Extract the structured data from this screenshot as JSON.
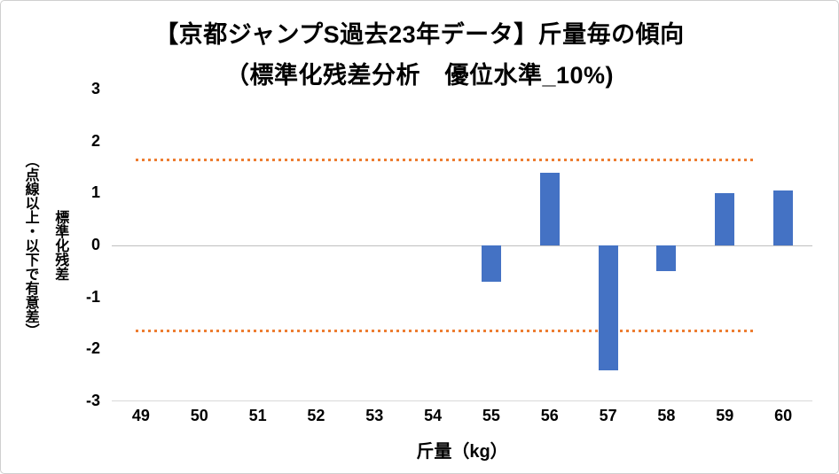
{
  "chart_data": {
    "type": "bar",
    "title": "【京都ジャンプS過去23年データ】斤量毎の傾向",
    "subtitle": "（標準化残差分析　優位水準_10%)",
    "xlabel": "斤量（kg）",
    "ylabel_line1": "標準化残差",
    "ylabel_line2": "（点線以上・以下で有意差）",
    "categories": [
      "49",
      "50",
      "51",
      "52",
      "53",
      "54",
      "55",
      "56",
      "57",
      "58",
      "59",
      "60"
    ],
    "values": [
      0,
      0,
      0,
      0,
      0,
      0,
      -0.7,
      1.4,
      -2.4,
      -0.5,
      1.0,
      1.05
    ],
    "ylim": [
      -3,
      3
    ],
    "yticks": [
      3,
      2,
      1,
      0,
      -1,
      -2,
      -3
    ],
    "significance_lines": [
      1.64,
      -1.64
    ],
    "bar_color": "#4472C4",
    "line_color": "#ED7D31",
    "zero_axis_color": "#BFBFBF",
    "plot_bottom_line_color": "#D9D9D9",
    "legend": "none",
    "grid": "zero-line-only"
  }
}
